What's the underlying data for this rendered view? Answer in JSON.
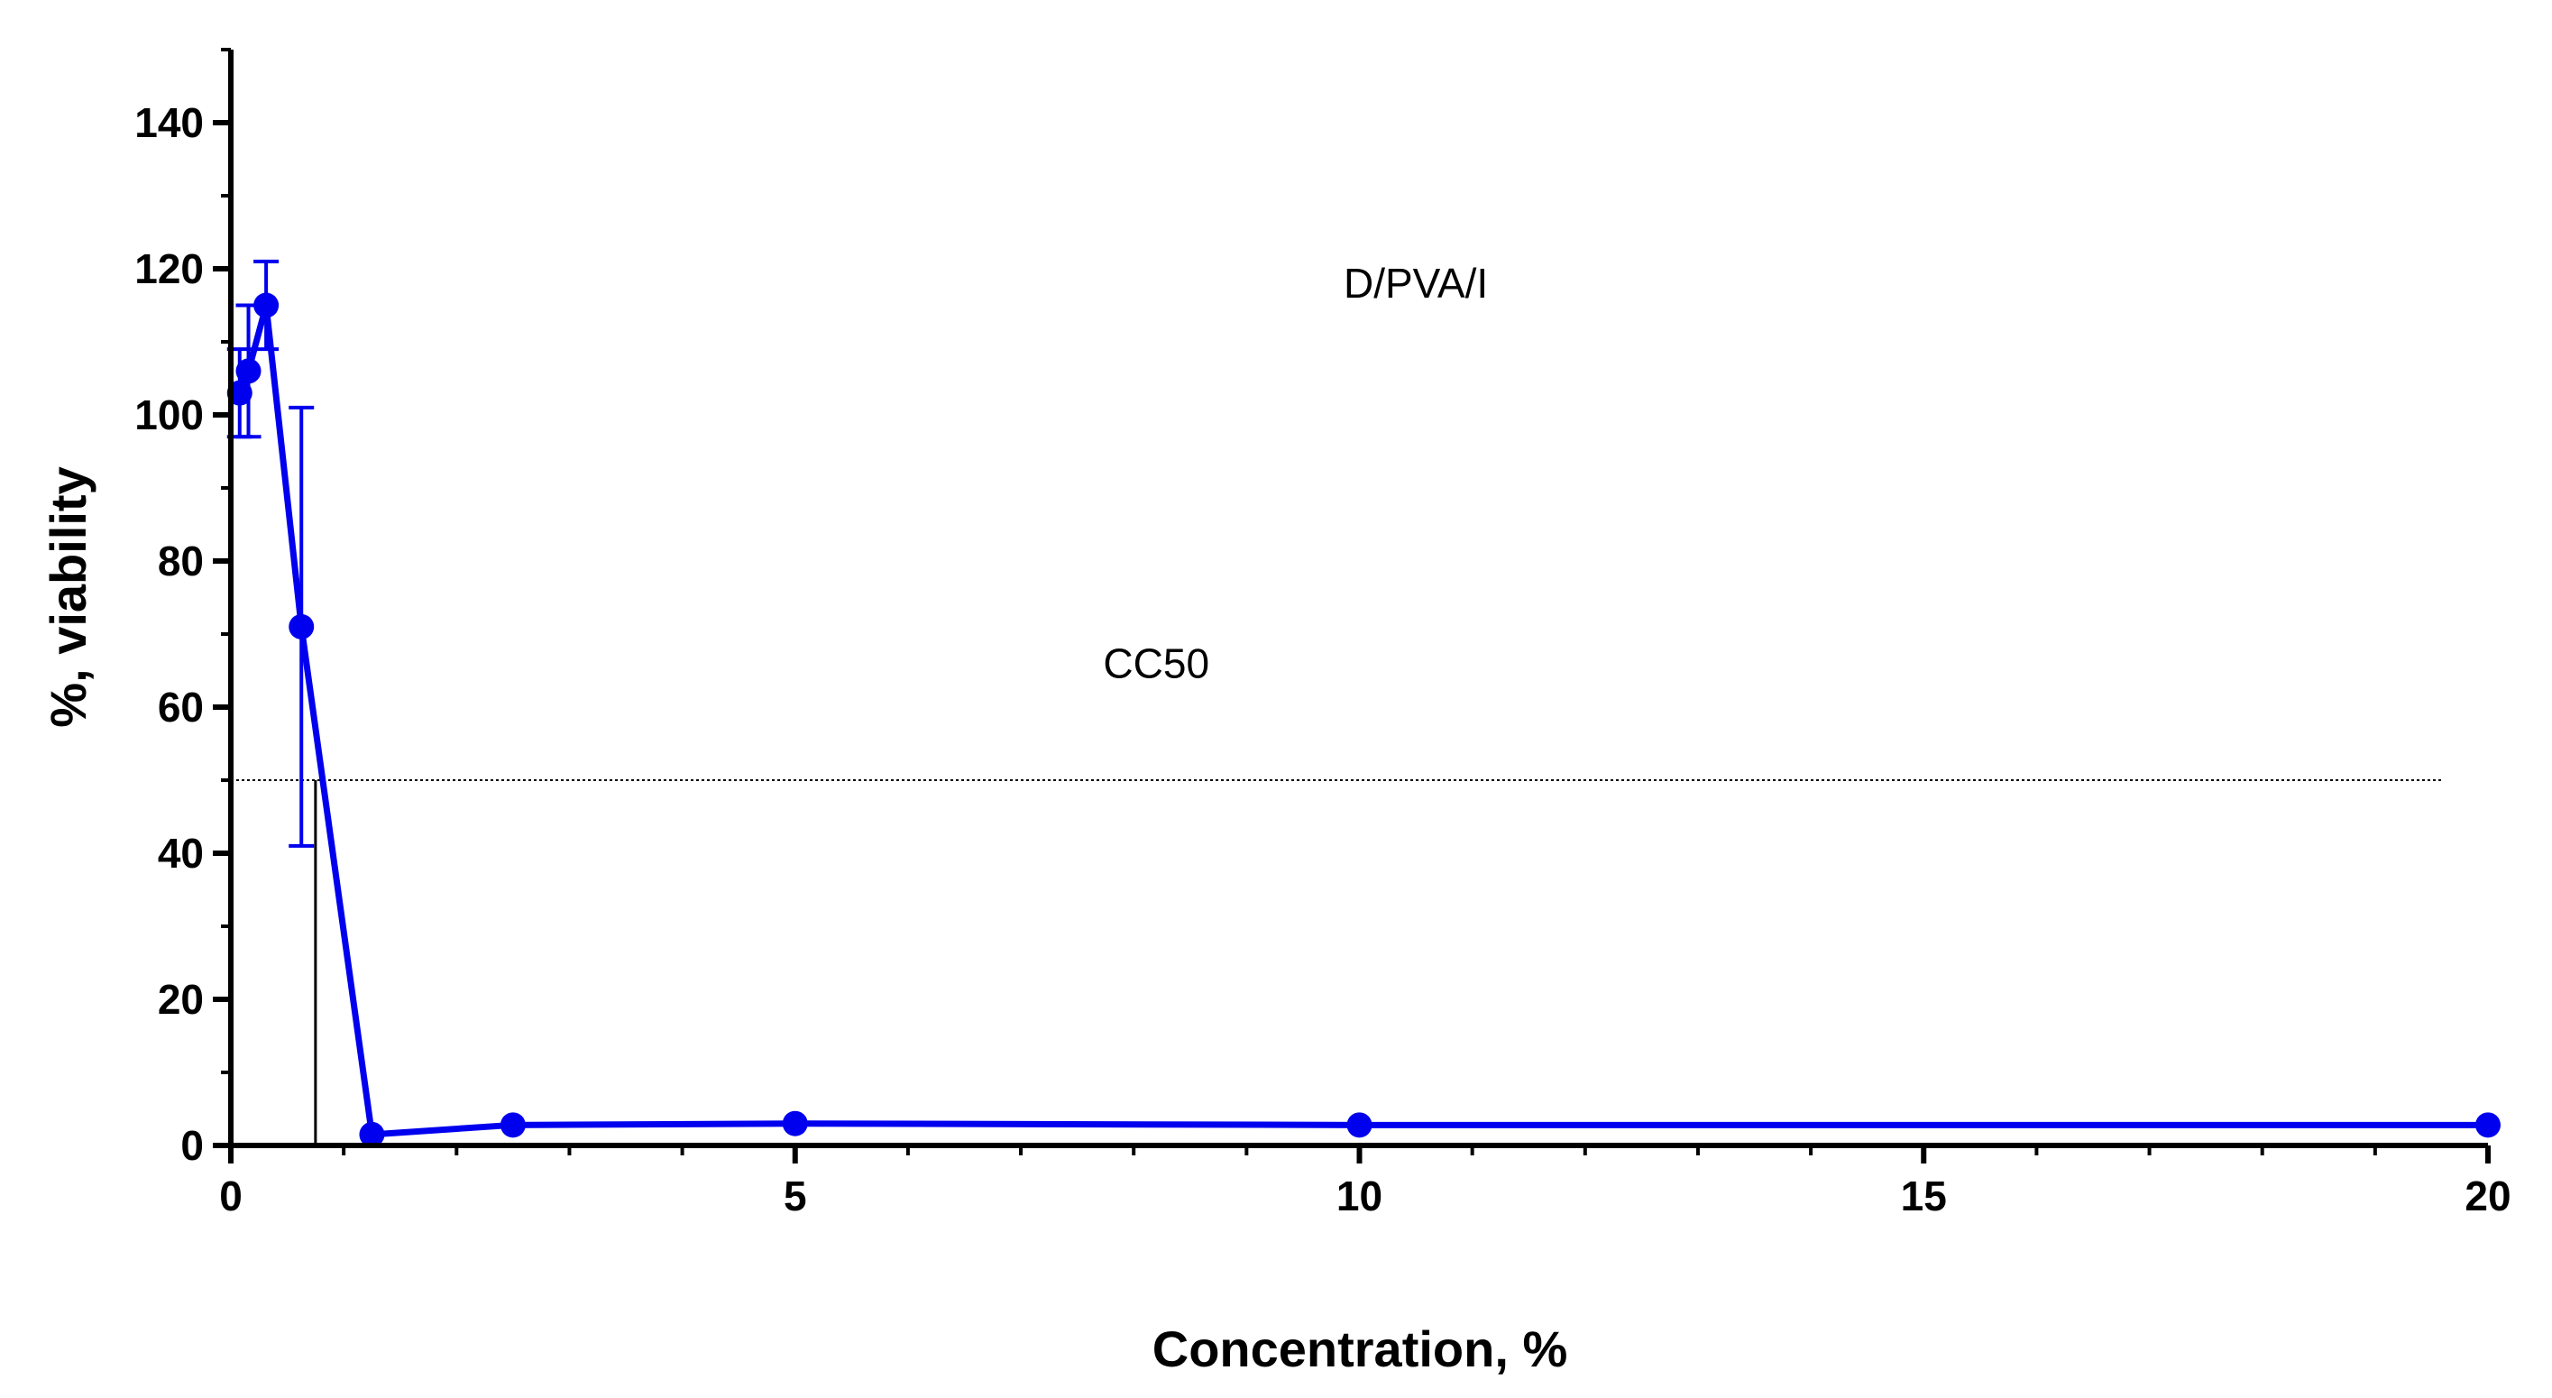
{
  "chart_data": {
    "type": "line",
    "title": "",
    "xlabel": "Concentration, %",
    "ylabel": "%, viability",
    "xlim": [
      0,
      20
    ],
    "ylim": [
      0,
      150
    ],
    "xticks": [
      "0",
      "5",
      "10",
      "15",
      "20"
    ],
    "yticks": [
      "0",
      "20",
      "40",
      "60",
      "80",
      "100",
      "120",
      "140"
    ],
    "grid": false,
    "colors": {
      "series": "#0000ee",
      "axis": "#000000",
      "reference": "#000000"
    },
    "series": [
      {
        "x": [
          0.078,
          0.156,
          0.3125,
          0.625,
          1.25,
          2.5,
          5,
          10,
          20
        ],
        "y": [
          103,
          106,
          115,
          71,
          1.5,
          2.8,
          3,
          2.8,
          2.8
        ],
        "error": [
          6,
          9,
          6,
          30,
          0,
          0,
          0,
          0,
          0
        ]
      }
    ],
    "cc50_line": {
      "y": 50,
      "x_end": 19.6
    },
    "cc50_drop": {
      "x": 0.75
    },
    "annotations": [
      {
        "text": "D/PVA/I",
        "x": 10.5,
        "y": 118
      },
      {
        "text": "CC50",
        "x": 8.2,
        "y": 66
      }
    ]
  }
}
